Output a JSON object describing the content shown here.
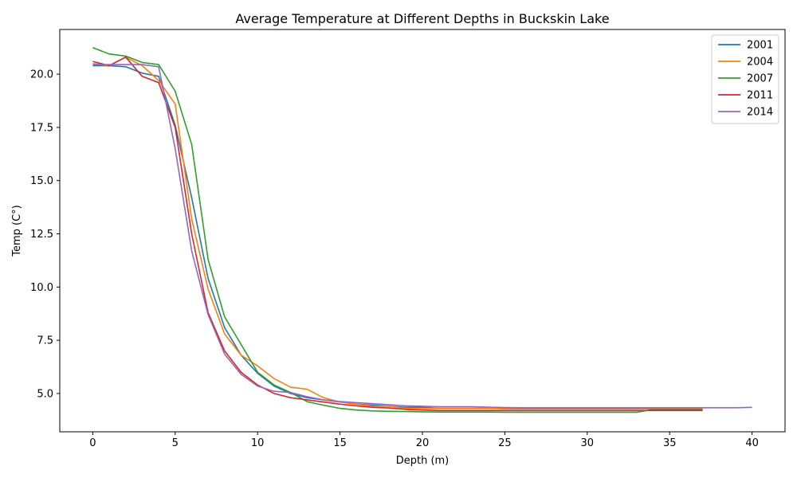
{
  "chart_data": {
    "type": "line",
    "title": "Average Temperature at Different Depths in Buckskin Lake",
    "xlabel": "Depth (m)",
    "ylabel": "Temp (C°)",
    "xlim": [
      -2,
      42
    ],
    "ylim": [
      3.2,
      22.1
    ],
    "xticks": [
      0,
      5,
      10,
      15,
      20,
      25,
      30,
      35,
      40
    ],
    "yticks": [
      5.0,
      7.5,
      10.0,
      12.5,
      15.0,
      17.5,
      20.0
    ],
    "ytick_labels": [
      "5.0",
      "7.5",
      "10.0",
      "12.5",
      "15.0",
      "17.5",
      "20.0"
    ],
    "grid": false,
    "legend_position": "top-right",
    "series": [
      {
        "name": "2001",
        "color": "#1f77b4",
        "x": [
          0,
          1,
          2,
          3,
          4,
          5,
          6,
          7,
          8,
          9,
          10,
          11,
          12,
          13,
          14,
          15,
          16,
          17,
          18,
          19,
          20,
          21,
          22,
          23,
          24,
          25,
          26,
          27,
          28,
          29,
          30,
          31,
          32,
          33,
          34,
          35,
          36,
          37
        ],
        "values": [
          20.4,
          20.4,
          20.35,
          20.05,
          19.9,
          17.6,
          14.2,
          10.4,
          8.1,
          6.8,
          5.95,
          5.35,
          5.0,
          4.8,
          4.7,
          4.6,
          4.5,
          4.45,
          4.4,
          4.35,
          4.35,
          4.3,
          4.3,
          4.3,
          4.3,
          4.28,
          4.28,
          4.28,
          4.28,
          4.28,
          4.28,
          4.28,
          4.28,
          4.28,
          4.28,
          4.28,
          4.28,
          4.28
        ]
      },
      {
        "name": "2004",
        "color": "#ff7f0e",
        "x": [
          0,
          1,
          2,
          3,
          4,
          5,
          6,
          7,
          8,
          9,
          10,
          11,
          12,
          13,
          14,
          15,
          16,
          17,
          18,
          19,
          20,
          21,
          22,
          23,
          24,
          25,
          26,
          27,
          28,
          29,
          30,
          31,
          32,
          33,
          34,
          35,
          36,
          37
        ],
        "values": [
          20.5,
          20.4,
          20.8,
          20.4,
          19.7,
          18.6,
          13.2,
          9.9,
          7.8,
          6.8,
          6.3,
          5.7,
          5.3,
          5.2,
          4.8,
          4.6,
          4.5,
          4.4,
          4.4,
          4.3,
          4.3,
          4.3,
          4.3,
          4.3,
          4.3,
          4.3,
          4.3,
          4.3,
          4.3,
          4.3,
          4.3,
          4.3,
          4.3,
          4.3,
          4.3,
          4.3,
          4.3,
          4.3
        ]
      },
      {
        "name": "2007",
        "color": "#2ca02c",
        "x": [
          0,
          1,
          2,
          3,
          4,
          5,
          6,
          7,
          8,
          9,
          10,
          11,
          12,
          13,
          14,
          15,
          16,
          17,
          18,
          19,
          20,
          21,
          22,
          23,
          24,
          25,
          26,
          27,
          28,
          29,
          30,
          31,
          32,
          33,
          34,
          35,
          36,
          37
        ],
        "values": [
          21.25,
          20.95,
          20.85,
          20.55,
          20.45,
          19.2,
          16.7,
          11.3,
          8.6,
          7.3,
          6.0,
          5.4,
          5.05,
          4.62,
          4.45,
          4.3,
          4.22,
          4.18,
          4.16,
          4.15,
          4.14,
          4.13,
          4.13,
          4.13,
          4.13,
          4.12,
          4.12,
          4.12,
          4.12,
          4.12,
          4.12,
          4.12,
          4.12,
          4.12,
          4.25,
          4.25,
          4.25,
          4.25
        ]
      },
      {
        "name": "2011",
        "color": "#d62728",
        "x": [
          0,
          1,
          2,
          3,
          4,
          5,
          6,
          7,
          8,
          9,
          10,
          11,
          12,
          13,
          14,
          15,
          16,
          17,
          18,
          19,
          20,
          21,
          22,
          23,
          24,
          25,
          26,
          27,
          28,
          29,
          30,
          31,
          32,
          33,
          34,
          35,
          36,
          37
        ],
        "values": [
          20.6,
          20.4,
          20.8,
          19.9,
          19.6,
          17.5,
          12.5,
          8.8,
          7.0,
          6.0,
          5.4,
          5.0,
          4.8,
          4.7,
          4.6,
          4.5,
          4.42,
          4.35,
          4.32,
          4.25,
          4.22,
          4.2,
          4.2,
          4.2,
          4.2,
          4.2,
          4.2,
          4.2,
          4.2,
          4.2,
          4.2,
          4.2,
          4.2,
          4.2,
          4.2,
          4.2,
          4.2,
          4.2
        ]
      },
      {
        "name": "2014",
        "color": "#9467bd",
        "x": [
          0,
          1,
          2,
          3,
          4,
          5,
          6,
          7,
          8,
          9,
          10,
          11,
          12,
          13,
          14,
          15,
          16,
          17,
          18,
          19,
          20,
          21,
          22,
          23,
          24,
          25,
          26,
          27,
          28,
          29,
          30,
          31,
          32,
          33,
          34,
          35,
          36,
          37,
          38,
          39,
          40
        ],
        "values": [
          20.45,
          20.45,
          20.45,
          20.45,
          20.35,
          16.5,
          11.7,
          8.7,
          6.85,
          5.9,
          5.35,
          5.1,
          5.05,
          4.85,
          4.7,
          4.62,
          4.57,
          4.52,
          4.47,
          4.42,
          4.4,
          4.38,
          4.38,
          4.38,
          4.36,
          4.34,
          4.33,
          4.33,
          4.33,
          4.33,
          4.33,
          4.33,
          4.33,
          4.33,
          4.33,
          4.33,
          4.33,
          4.33,
          4.33,
          4.33,
          4.35
        ]
      }
    ]
  }
}
